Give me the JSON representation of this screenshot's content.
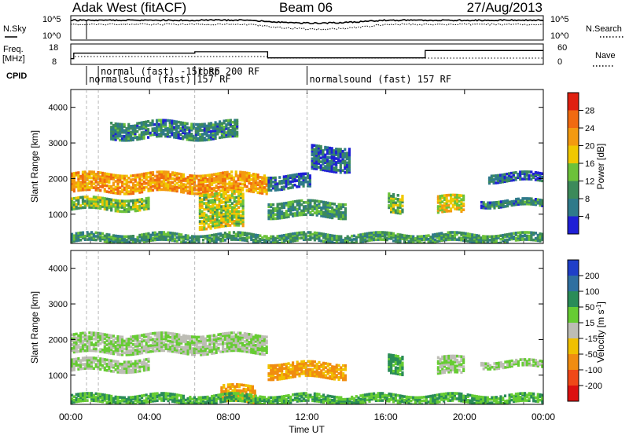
{
  "header": {
    "radar": "Adak West (fitACF)",
    "beam": "Beam 06",
    "date": "27/Aug/2013"
  },
  "top_panels": {
    "nsky_label": "N.Sky",
    "nsky_ticks": [
      "10^5",
      "10^0"
    ],
    "nsearch_label": "N.Search",
    "nsearch_ticks": [
      "10^5",
      "10^0"
    ],
    "freq_label": "Freq.",
    "freq_unit": "[MHz]",
    "freq_ticks": [
      "18",
      "8"
    ],
    "nave_label": "Nave",
    "nave_ticks": [
      "60",
      "0"
    ],
    "cpid_label": "CPID",
    "cpid_entries": [
      {
        "label": "normalsound (fast) 157 RF",
        "start": 0.8
      },
      {
        "label": "normal (fast) -151 RF",
        "start": 1.4
      },
      {
        "label": "rbsp 200 RF",
        "start": 6.3
      },
      {
        "label": "normalsound (fast) 157 RF",
        "start": 12.0
      }
    ],
    "cpid_boundaries": [
      0.8,
      1.4,
      6.3,
      12.0
    ]
  },
  "axes": {
    "xlabel": "Time UT",
    "x_ticks": [
      "00:00",
      "04:00",
      "08:00",
      "12:00",
      "16:00",
      "20:00",
      "00:00"
    ],
    "ylabel": "Slant Range [km]",
    "y_ticks": [
      "1000",
      "2000",
      "3000",
      "4000"
    ]
  },
  "power_scale": {
    "label": "Power [dB]",
    "ticks": [
      "4",
      "8",
      "12",
      "16",
      "20",
      "24",
      "28"
    ],
    "colors": [
      "#1f1fd6",
      "#2f7a8a",
      "#3c8a5a",
      "#6cc23a",
      "#f0c800",
      "#f39a10",
      "#f06a10",
      "#e02010"
    ]
  },
  "velocity_scale": {
    "label": "Velocity [m s",
    "label_sup": "-1",
    "label_end": "]",
    "ticks": [
      "200",
      "100",
      "50",
      "15",
      "-15",
      "-50",
      "-100",
      "-200"
    ],
    "colors": [
      "#1f3fc8",
      "#2f6fa0",
      "#2a8c58",
      "#66cc33",
      "#bdbdb5",
      "#f0c000",
      "#f08c10",
      "#f04818",
      "#dc1010"
    ]
  },
  "chart_data": {
    "type": "heatmap",
    "title": "Adak West (fitACF) Beam 06 27/Aug/2013",
    "xlabel": "Time UT",
    "ylabel": "Slant Range [km]",
    "xlim": [
      0,
      24
    ],
    "ylim": [
      180,
      4500
    ],
    "x_ticks_hours": [
      0,
      4,
      8,
      12,
      16,
      20,
      24
    ],
    "freq_segments": [
      {
        "start": 0.0,
        "end": 0.15,
        "freq_mhz": 10.8
      },
      {
        "start": 0.15,
        "end": 6.3,
        "freq_mhz": 13.5
      },
      {
        "start": 6.3,
        "end": 10.0,
        "freq_mhz": 14.2
      },
      {
        "start": 10.0,
        "end": 18.0,
        "freq_mhz": 11.2
      },
      {
        "start": 18.0,
        "end": 24.0,
        "freq_mhz": 14.8
      }
    ],
    "power_features": [
      {
        "t0": 0.0,
        "t1": 10.0,
        "r0": 1600,
        "r1": 2150,
        "power": 22
      },
      {
        "t0": 0.0,
        "t1": 4.0,
        "r0": 1100,
        "r1": 1450,
        "power": 14
      },
      {
        "t0": 10.0,
        "t1": 12.2,
        "r0": 1700,
        "r1": 2100,
        "power": 6
      },
      {
        "t0": 12.2,
        "t1": 14.2,
        "r0": 2200,
        "r1": 2900,
        "power": 6
      },
      {
        "t0": 10.0,
        "t1": 14.0,
        "r0": 900,
        "r1": 1350,
        "power": 10
      },
      {
        "t0": 6.5,
        "t1": 8.8,
        "r0": 600,
        "r1": 1600,
        "power": 16
      },
      {
        "t0": 16.1,
        "t1": 16.9,
        "r0": 1000,
        "r1": 1550,
        "power": 14
      },
      {
        "t0": 18.6,
        "t1": 20.0,
        "r0": 1000,
        "r1": 1500,
        "power": 18
      },
      {
        "t0": 20.8,
        "t1": 24.0,
        "r0": 1200,
        "r1": 1400,
        "power": 8
      },
      {
        "t0": 21.2,
        "t1": 24.0,
        "r0": 1900,
        "r1": 2150,
        "power": 6
      },
      {
        "t0": 0.0,
        "t1": 24.0,
        "r0": 200,
        "r1": 450,
        "power": 10
      },
      {
        "t0": 2.0,
        "t1": 8.5,
        "r0": 3100,
        "r1": 3600,
        "power": 8
      }
    ],
    "velocity_features": [
      {
        "t0": 0.0,
        "t1": 10.0,
        "r0": 1600,
        "r1": 2150,
        "velocity": 0
      },
      {
        "t0": 0.0,
        "t1": 4.0,
        "r0": 1100,
        "r1": 1450,
        "velocity": 0
      },
      {
        "t0": 10.0,
        "t1": 14.0,
        "r0": 900,
        "r1": 1350,
        "velocity": -80
      },
      {
        "t0": 7.6,
        "t1": 9.4,
        "r0": 200,
        "r1": 700,
        "velocity": -80
      },
      {
        "t0": 16.1,
        "t1": 16.9,
        "r0": 1000,
        "r1": 1550,
        "velocity": 40
      },
      {
        "t0": 18.6,
        "t1": 20.0,
        "r0": 1000,
        "r1": 1500,
        "velocity": 0
      },
      {
        "t0": 20.8,
        "t1": 24.0,
        "r0": 1200,
        "r1": 1400,
        "velocity": 0
      },
      {
        "t0": 0.0,
        "t1": 24.0,
        "r0": 200,
        "r1": 450,
        "velocity": 30
      }
    ]
  }
}
